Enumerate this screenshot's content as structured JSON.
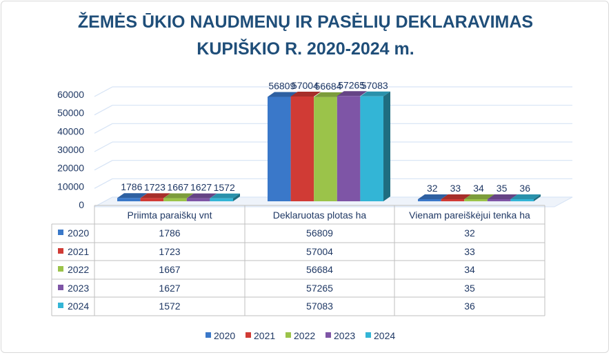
{
  "chart_data": {
    "type": "bar",
    "title_line1": "ŽEMĖS ŪKIO NAUDMENŲ IR PASĖLIŲ DEKLARAVIMAS",
    "title_line2": "KUPIŠKIO R. 2020-2024 m.",
    "categories": [
      "Priimta paraiškų vnt",
      "Deklaruotas plotas ha",
      "Vienam pareiškėjui tenka ha"
    ],
    "series": [
      {
        "name": "2020",
        "color": "#3a78c9",
        "values": [
          1786,
          56809,
          32
        ]
      },
      {
        "name": "2021",
        "color": "#d03b35",
        "values": [
          1723,
          57004,
          33
        ]
      },
      {
        "name": "2022",
        "color": "#9bc34a",
        "values": [
          1667,
          56684,
          34
        ]
      },
      {
        "name": "2023",
        "color": "#7e55a6",
        "values": [
          1627,
          57265,
          35
        ]
      },
      {
        "name": "2024",
        "color": "#33b5d6",
        "values": [
          1572,
          57083,
          36
        ]
      }
    ],
    "yticks": [
      0,
      10000,
      20000,
      30000,
      40000,
      50000,
      60000
    ],
    "ylim": [
      0,
      60000
    ],
    "grid": true,
    "legend": "bottom",
    "data_table": true,
    "label_color": "#1f3864",
    "title_color": "#1f4e79"
  }
}
